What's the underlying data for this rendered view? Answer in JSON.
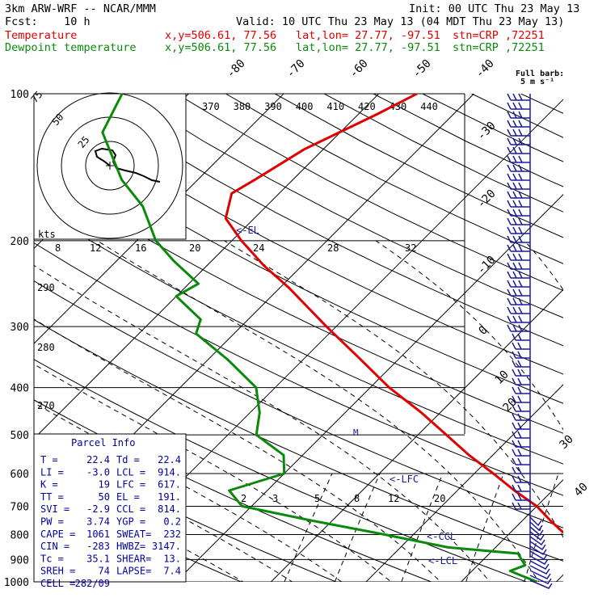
{
  "header": {
    "model": "3km ARW-WRF -- NCAR/MMM",
    "init": "Init: 00 UTC Thu 23 May 13",
    "fcst": "Fcst:    10 h",
    "valid": "Valid: 10 UTC Thu 23 May 13 (04 MDT Thu 23 May 13)",
    "temp_label": "Temperature",
    "dew_label": "Dewpoint temperature",
    "xy": "x,y=506.61, 77.56",
    "latlon": "lat,lon= 27.77, -97.51",
    "stn": "stn=CRP ,72251"
  },
  "colors": {
    "temperature": "#e00000",
    "dewpoint": "#0a8a0a",
    "barbs": "#1a1a9a",
    "parcel_text": "#0000a0"
  },
  "chart_data": {
    "type": "line",
    "title": "",
    "ylabel": "",
    "pressure_levels_hPa": [
      100,
      200,
      300,
      400,
      500,
      600,
      700,
      800,
      900,
      1000
    ],
    "isotherm_labels_C": [
      "-80",
      "-70",
      "-60",
      "-50",
      "-40",
      "-30",
      "-20",
      "-10",
      "0",
      "10",
      "20",
      "30",
      "40"
    ],
    "theta_labels_K": [
      "370",
      "380",
      "390",
      "400",
      "410",
      "420",
      "430",
      "440"
    ],
    "hodograph": {
      "unit_label": "kts",
      "ring_labels": [
        "25",
        "50",
        "75"
      ],
      "speed_scale": [
        "8",
        "12",
        "16",
        "20",
        "24",
        "28",
        "32"
      ]
    },
    "theta_e_labels": [
      "290",
      "280",
      "270"
    ],
    "mixing_ratio_labels": [
      "2",
      "3",
      "5",
      "8",
      "12",
      "20"
    ],
    "markers": {
      "el": "<-EL",
      "lfc": "<-LFC",
      "ccl": "<-CCL",
      "lcl": "<-LCL",
      "m": "M"
    },
    "barb_title": "Full barb:",
    "barb_unit": "5 m s⁻¹",
    "series": [
      {
        "name": "Temperature",
        "points": [
          [
            1000,
            23
          ],
          [
            950,
            25.5
          ],
          [
            900,
            21
          ],
          [
            850,
            19
          ],
          [
            800,
            16
          ],
          [
            750,
            13
          ],
          [
            700,
            10
          ],
          [
            650,
            6
          ],
          [
            600,
            2
          ],
          [
            550,
            -2.5
          ],
          [
            500,
            -7
          ],
          [
            450,
            -12
          ],
          [
            400,
            -18
          ],
          [
            350,
            -24
          ],
          [
            300,
            -31
          ],
          [
            250,
            -39
          ],
          [
            225,
            -44
          ],
          [
            200,
            -49
          ],
          [
            180,
            -53
          ],
          [
            160,
            -55
          ],
          [
            150,
            -54
          ],
          [
            130,
            -52
          ],
          [
            110,
            -48
          ],
          [
            100,
            -46
          ]
        ]
      },
      {
        "name": "Dewpoint temperature",
        "points": [
          [
            1000,
            18
          ],
          [
            975,
            16
          ],
          [
            950,
            14
          ],
          [
            925,
            15
          ],
          [
            900,
            14
          ],
          [
            875,
            13
          ],
          [
            850,
            5
          ],
          [
            800,
            -3
          ],
          [
            750,
            -12
          ],
          [
            700,
            -21
          ],
          [
            650,
            -24
          ],
          [
            600,
            -20
          ],
          [
            550,
            -22
          ],
          [
            500,
            -27
          ],
          [
            450,
            -29
          ],
          [
            400,
            -32
          ],
          [
            350,
            -38
          ],
          [
            310,
            -44
          ],
          [
            290,
            -45
          ],
          [
            260,
            -50
          ],
          [
            245,
            -49
          ],
          [
            220,
            -54
          ],
          [
            200,
            -58
          ],
          [
            170,
            -63
          ],
          [
            150,
            -68
          ],
          [
            120,
            -75
          ],
          [
            100,
            -77
          ]
        ]
      }
    ]
  },
  "parcel": {
    "title": "Parcel Info",
    "rows": [
      [
        "T  =",
        "22.4",
        "Td =",
        "22.4"
      ],
      [
        "LI =",
        "-3.0",
        "LCL =",
        "914."
      ],
      [
        "K  =",
        "19",
        "LFC =",
        "617."
      ],
      [
        "TT =",
        "50",
        "EL  =",
        "191."
      ],
      [
        "SVI =",
        "-2.9",
        "CCL =",
        "814."
      ],
      [
        "PW =",
        "3.74",
        "YGP =",
        "0.2"
      ],
      [
        "CAPE =",
        "1061",
        "SWEAT=",
        "232"
      ],
      [
        "CIN =",
        "-283",
        "HWBZ=",
        "3147."
      ],
      [
        "Tc =",
        "35.1",
        "SHEAR=",
        "13."
      ],
      [
        "SREH =",
        "74",
        "LAPSE=",
        "7.4"
      ],
      [
        "CELL =",
        "282/09",
        "",
        ""
      ]
    ]
  }
}
